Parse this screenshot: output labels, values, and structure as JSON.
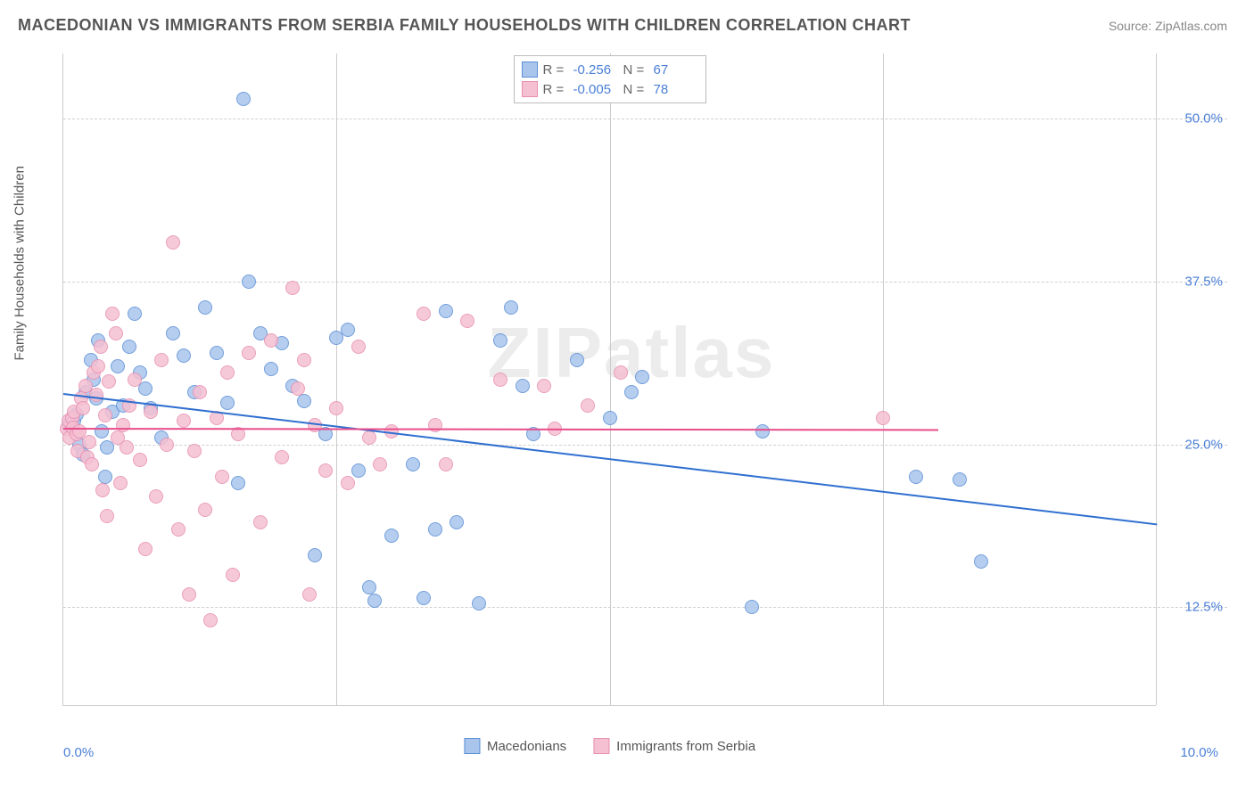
{
  "title": "MACEDONIAN VS IMMIGRANTS FROM SERBIA FAMILY HOUSEHOLDS WITH CHILDREN CORRELATION CHART",
  "source": "Source: ZipAtlas.com",
  "watermark": "ZIPatlas",
  "chart": {
    "type": "scatter",
    "y_axis_label": "Family Households with Children",
    "xlim": [
      0,
      10
    ],
    "ylim": [
      5,
      55
    ],
    "x_ticks": [
      {
        "value": 0,
        "label": "0.0%"
      },
      {
        "value": 10,
        "label": "10.0%"
      }
    ],
    "y_ticks": [
      {
        "value": 12.5,
        "label": "12.5%"
      },
      {
        "value": 25.0,
        "label": "25.0%"
      },
      {
        "value": 37.5,
        "label": "37.5%"
      },
      {
        "value": 50.0,
        "label": "50.0%"
      }
    ],
    "x_gridline_positions_pct": [
      25,
      50,
      75,
      100
    ],
    "background_color": "#ffffff",
    "grid_color": "#d0d0d0",
    "marker_radius": 8,
    "marker_fill_opacity": 0.35,
    "marker_stroke_width": 1.5,
    "series": [
      {
        "id": "macedonians",
        "label": "Macedonians",
        "color_stroke": "#5b8fd6",
        "color_fill": "#a9c5ec",
        "r": -0.256,
        "n": 67,
        "trend": {
          "x1": 0,
          "y1": 29.0,
          "x2": 10,
          "y2": 19.0,
          "color": "#2f6fd0",
          "width": 2
        },
        "points": [
          [
            0.05,
            26.5
          ],
          [
            0.08,
            27.0
          ],
          [
            0.1,
            26.8
          ],
          [
            0.12,
            27.3
          ],
          [
            0.15,
            25.0
          ],
          [
            0.18,
            24.2
          ],
          [
            0.2,
            29.0
          ],
          [
            0.25,
            31.5
          ],
          [
            0.28,
            30.0
          ],
          [
            0.3,
            28.5
          ],
          [
            0.32,
            33.0
          ],
          [
            0.35,
            26.0
          ],
          [
            0.38,
            22.5
          ],
          [
            0.4,
            24.8
          ],
          [
            0.45,
            27.5
          ],
          [
            0.5,
            31.0
          ],
          [
            0.55,
            28.0
          ],
          [
            0.6,
            32.5
          ],
          [
            0.65,
            35.0
          ],
          [
            0.7,
            30.5
          ],
          [
            0.75,
            29.3
          ],
          [
            0.8,
            27.8
          ],
          [
            0.9,
            25.5
          ],
          [
            1.0,
            33.5
          ],
          [
            1.1,
            31.8
          ],
          [
            1.2,
            29.0
          ],
          [
            1.3,
            35.5
          ],
          [
            1.4,
            32.0
          ],
          [
            1.5,
            28.2
          ],
          [
            1.6,
            22.0
          ],
          [
            1.65,
            51.5
          ],
          [
            1.7,
            37.5
          ],
          [
            1.8,
            33.5
          ],
          [
            1.9,
            30.8
          ],
          [
            2.0,
            32.8
          ],
          [
            2.1,
            29.5
          ],
          [
            2.2,
            28.3
          ],
          [
            2.3,
            16.5
          ],
          [
            2.4,
            25.8
          ],
          [
            2.5,
            33.2
          ],
          [
            2.6,
            33.8
          ],
          [
            2.7,
            23.0
          ],
          [
            2.8,
            14.0
          ],
          [
            2.85,
            13.0
          ],
          [
            3.0,
            18.0
          ],
          [
            3.2,
            23.5
          ],
          [
            3.3,
            13.2
          ],
          [
            3.4,
            18.5
          ],
          [
            3.5,
            35.2
          ],
          [
            3.6,
            19.0
          ],
          [
            3.8,
            12.8
          ],
          [
            4.0,
            33.0
          ],
          [
            4.1,
            35.5
          ],
          [
            4.2,
            29.5
          ],
          [
            4.3,
            25.8
          ],
          [
            4.7,
            31.5
          ],
          [
            5.0,
            27.0
          ],
          [
            5.2,
            29.0
          ],
          [
            5.3,
            30.2
          ],
          [
            6.3,
            12.5
          ],
          [
            6.4,
            26.0
          ],
          [
            7.8,
            22.5
          ],
          [
            8.2,
            22.3
          ],
          [
            8.4,
            16.0
          ]
        ]
      },
      {
        "id": "serbia",
        "label": "Immigrants from Serbia",
        "color_stroke": "#e78fb0",
        "color_fill": "#f5c0d2",
        "r": -0.005,
        "n": 78,
        "trend": {
          "x1": 0,
          "y1": 26.3,
          "x2": 8.0,
          "y2": 26.2,
          "color": "#e84c8a",
          "width": 2
        },
        "points": [
          [
            0.03,
            26.2
          ],
          [
            0.05,
            26.8
          ],
          [
            0.06,
            25.5
          ],
          [
            0.08,
            27.0
          ],
          [
            0.09,
            26.3
          ],
          [
            0.1,
            27.5
          ],
          [
            0.12,
            25.8
          ],
          [
            0.13,
            24.5
          ],
          [
            0.15,
            26.0
          ],
          [
            0.16,
            28.5
          ],
          [
            0.18,
            27.8
          ],
          [
            0.2,
            29.5
          ],
          [
            0.22,
            24.0
          ],
          [
            0.24,
            25.2
          ],
          [
            0.26,
            23.5
          ],
          [
            0.28,
            30.5
          ],
          [
            0.3,
            28.8
          ],
          [
            0.32,
            31.0
          ],
          [
            0.34,
            32.5
          ],
          [
            0.36,
            21.5
          ],
          [
            0.38,
            27.2
          ],
          [
            0.4,
            19.5
          ],
          [
            0.42,
            29.8
          ],
          [
            0.45,
            35.0
          ],
          [
            0.48,
            33.5
          ],
          [
            0.5,
            25.5
          ],
          [
            0.52,
            22.0
          ],
          [
            0.55,
            26.5
          ],
          [
            0.58,
            24.8
          ],
          [
            0.6,
            28.0
          ],
          [
            0.65,
            30.0
          ],
          [
            0.7,
            23.8
          ],
          [
            0.75,
            17.0
          ],
          [
            0.8,
            27.5
          ],
          [
            0.85,
            21.0
          ],
          [
            0.9,
            31.5
          ],
          [
            0.95,
            25.0
          ],
          [
            1.0,
            40.5
          ],
          [
            1.05,
            18.5
          ],
          [
            1.1,
            26.8
          ],
          [
            1.15,
            13.5
          ],
          [
            1.2,
            24.5
          ],
          [
            1.25,
            29.0
          ],
          [
            1.3,
            20.0
          ],
          [
            1.35,
            11.5
          ],
          [
            1.4,
            27.0
          ],
          [
            1.45,
            22.5
          ],
          [
            1.5,
            30.5
          ],
          [
            1.55,
            15.0
          ],
          [
            1.6,
            25.8
          ],
          [
            1.7,
            32.0
          ],
          [
            1.8,
            19.0
          ],
          [
            1.9,
            33.0
          ],
          [
            2.0,
            24.0
          ],
          [
            2.1,
            37.0
          ],
          [
            2.15,
            29.3
          ],
          [
            2.2,
            31.5
          ],
          [
            2.25,
            13.5
          ],
          [
            2.3,
            26.5
          ],
          [
            2.4,
            23.0
          ],
          [
            2.5,
            27.8
          ],
          [
            2.6,
            22.0
          ],
          [
            2.7,
            32.5
          ],
          [
            2.8,
            25.5
          ],
          [
            2.9,
            23.5
          ],
          [
            3.0,
            26.0
          ],
          [
            3.3,
            35.0
          ],
          [
            3.4,
            26.5
          ],
          [
            3.5,
            23.5
          ],
          [
            3.7,
            34.5
          ],
          [
            4.0,
            30.0
          ],
          [
            4.4,
            29.5
          ],
          [
            4.5,
            26.2
          ],
          [
            4.8,
            28.0
          ],
          [
            5.1,
            30.5
          ],
          [
            7.5,
            27.0
          ]
        ]
      }
    ],
    "legend_top": {
      "rows": [
        {
          "swatch_fill": "#a9c5ec",
          "swatch_stroke": "#5b8fd6",
          "r_label": "R =",
          "r_val": "-0.256",
          "n_label": "N =",
          "n_val": "67"
        },
        {
          "swatch_fill": "#f5c0d2",
          "swatch_stroke": "#e78fb0",
          "r_label": "R =",
          "r_val": "-0.005",
          "n_label": "N =",
          "n_val": "78"
        }
      ]
    },
    "legend_bottom": [
      {
        "swatch_fill": "#a9c5ec",
        "swatch_stroke": "#5b8fd6",
        "label": "Macedonians"
      },
      {
        "swatch_fill": "#f5c0d2",
        "swatch_stroke": "#e78fb0",
        "label": "Immigrants from Serbia"
      }
    ]
  }
}
